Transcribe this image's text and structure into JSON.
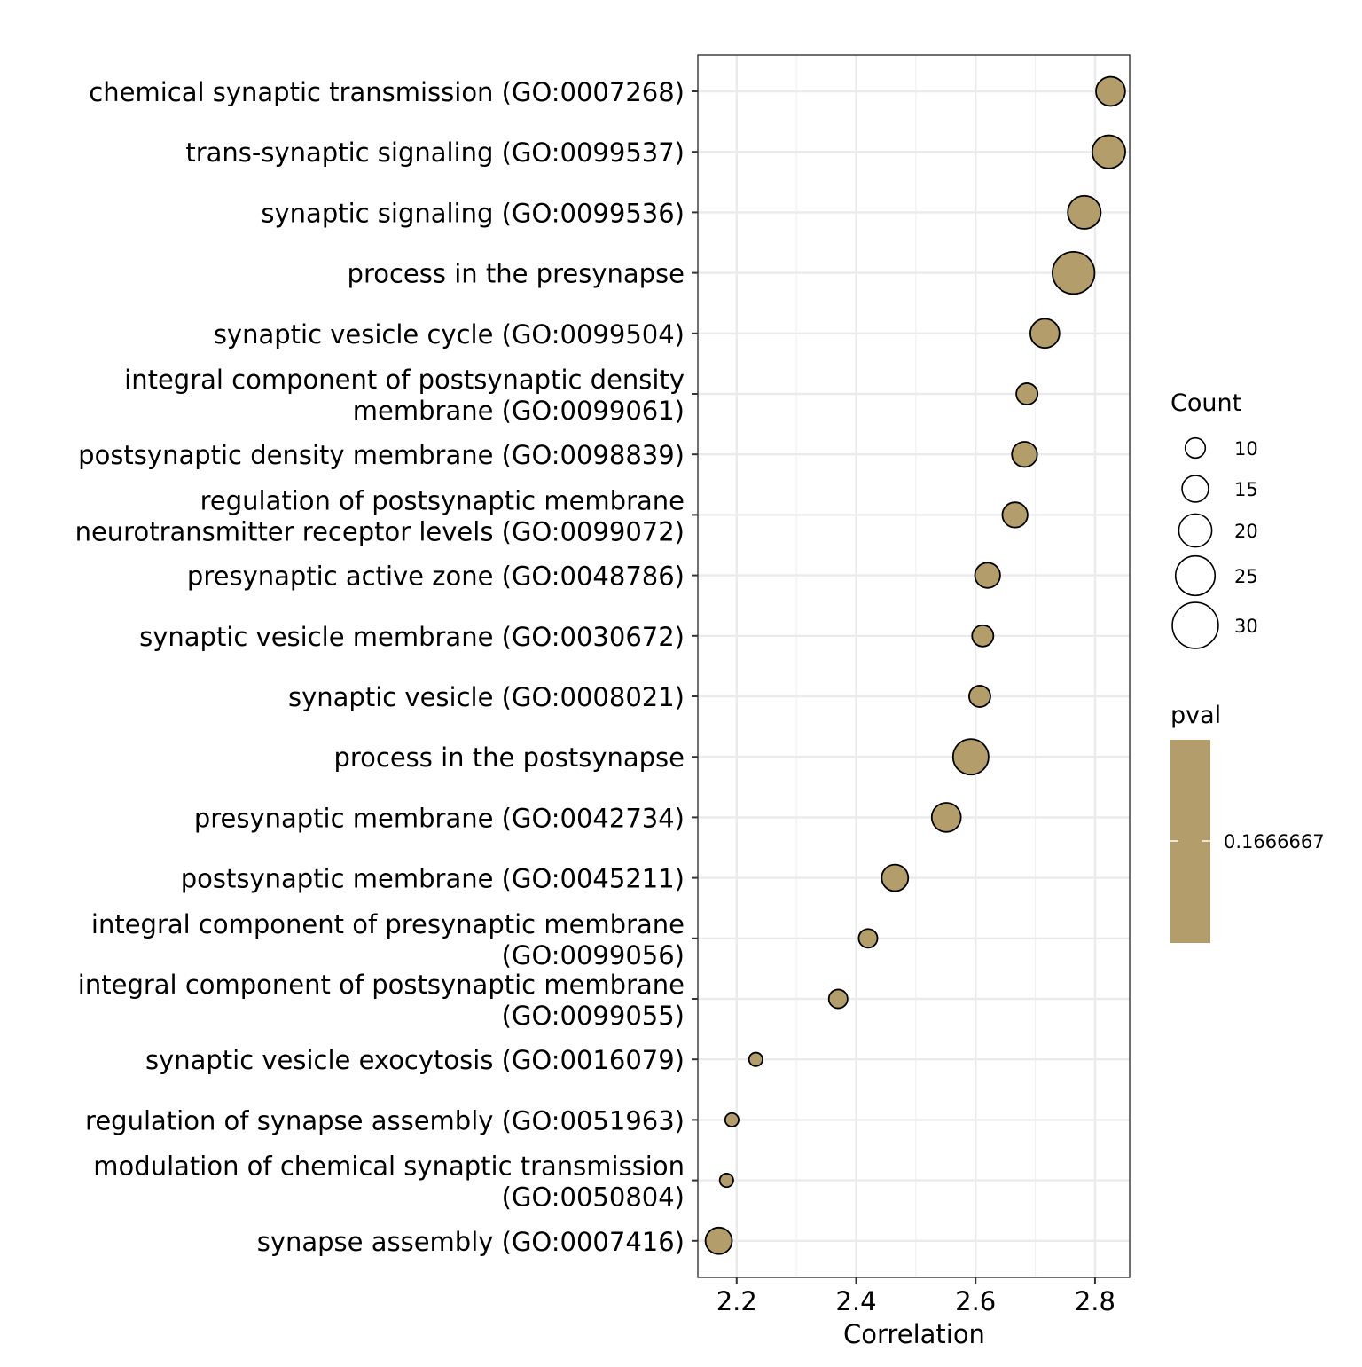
{
  "chart_data": {
    "type": "scatter",
    "xlabel": "Correlation",
    "ylabel": "",
    "xlim": [
      2.135,
      2.858
    ],
    "xticks": [
      2.2,
      2.4,
      2.6,
      2.8
    ],
    "xtick_labels": [
      "2.2",
      "2.4",
      "2.6",
      "2.8"
    ],
    "grid": true,
    "legend_placement": "right",
    "categories": [
      [
        "chemical synaptic transmission (GO:0007268)"
      ],
      [
        "trans-synaptic signaling (GO:0099537)"
      ],
      [
        "synaptic signaling (GO:0099536)"
      ],
      [
        "process in the presynapse"
      ],
      [
        "synaptic vesicle cycle (GO:0099504)"
      ],
      [
        "integral component of postsynaptic density",
        "membrane (GO:0099061)"
      ],
      [
        "postsynaptic density membrane (GO:0098839)"
      ],
      [
        "regulation of postsynaptic membrane",
        "neurotransmitter receptor levels (GO:0099072)"
      ],
      [
        "presynaptic active zone (GO:0048786)"
      ],
      [
        "synaptic vesicle membrane (GO:0030672)"
      ],
      [
        "synaptic vesicle (GO:0008021)"
      ],
      [
        "process in the postsynapse"
      ],
      [
        "presynaptic membrane (GO:0042734)"
      ],
      [
        "postsynaptic membrane (GO:0045211)"
      ],
      [
        "integral component of presynaptic membrane",
        "(GO:0099056)"
      ],
      [
        "integral component of postsynaptic membrane",
        "(GO:0099055)"
      ],
      [
        "synaptic vesicle exocytosis (GO:0016079)"
      ],
      [
        "regulation of synapse assembly (GO:0051963)"
      ],
      [
        "modulation of chemical synaptic transmission",
        "(GO:0050804)"
      ],
      [
        "synapse assembly (GO:0007416)"
      ]
    ],
    "x": [
      2.826,
      2.823,
      2.782,
      2.764,
      2.716,
      2.686,
      2.682,
      2.666,
      2.62,
      2.612,
      2.607,
      2.592,
      2.551,
      2.465,
      2.42,
      2.37,
      2.232,
      2.192,
      2.183,
      2.17
    ],
    "count": [
      17,
      20,
      20,
      27,
      17,
      11,
      14,
      14,
      14,
      11,
      11,
      22,
      17,
      15,
      9,
      9,
      5,
      5,
      5,
      15
    ],
    "pval": [
      0.1666667,
      0.1666667,
      0.1666667,
      0.1666667,
      0.1666667,
      0.1666667,
      0.1666667,
      0.1666667,
      0.1666667,
      0.1666667,
      0.1666667,
      0.1666667,
      0.1666667,
      0.1666667,
      0.1666667,
      0.1666667,
      0.1666667,
      0.1666667,
      0.1666667,
      0.1666667
    ],
    "point_color": "#b39d6b",
    "point_outline": "#000000",
    "legends": {
      "size": {
        "title": "Count",
        "values": [
          10,
          15,
          20,
          25,
          30
        ],
        "labels": [
          "10",
          "15",
          "20",
          "25",
          "30"
        ]
      },
      "color": {
        "title": "pval",
        "value": 0.1666667,
        "label": "0.1666667",
        "color": "#b39d6b"
      }
    }
  }
}
